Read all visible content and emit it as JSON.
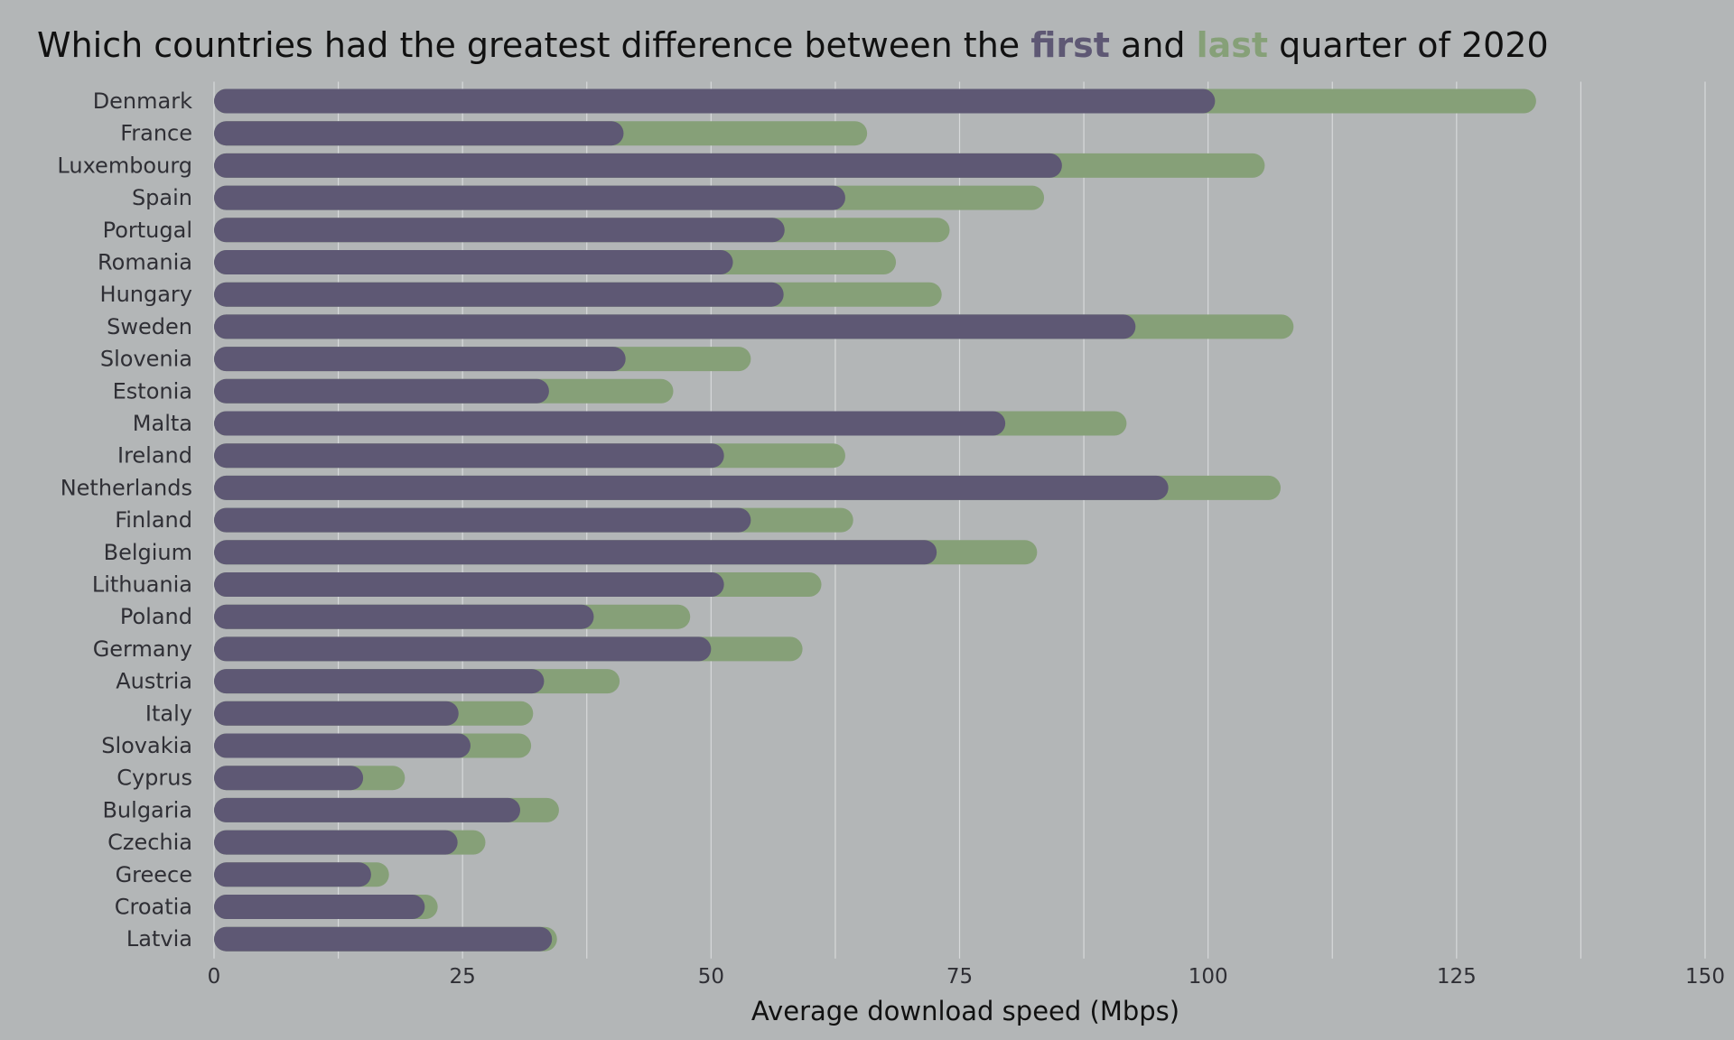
{
  "title": {
    "before": "Which countries had the greatest difference between the ",
    "first": "first",
    "middle": " and ",
    "last": "last",
    "after": " quarter of 2020"
  },
  "colors": {
    "background": "#b3b6b7",
    "first": "#5e5874",
    "last": "#86a078",
    "grid": "#d7d9da"
  },
  "chart_data": {
    "type": "bar",
    "orientation": "horizontal",
    "xlabel": "Average download speed (Mbps)",
    "xlim": [
      0,
      150
    ],
    "xticks": [
      0,
      25,
      50,
      75,
      100,
      125,
      150
    ],
    "grid": true,
    "categories": [
      "Denmark",
      "France",
      "Luxembourg",
      "Spain",
      "Portugal",
      "Romania",
      "Hungary",
      "Sweden",
      "Slovenia",
      "Estonia",
      "Malta",
      "Ireland",
      "Netherlands",
      "Finland",
      "Belgium",
      "Lithuania",
      "Poland",
      "Germany",
      "Austria",
      "Italy",
      "Slovakia",
      "Cyprus",
      "Bulgaria",
      "Czechia",
      "Greece",
      "Croatia",
      "Latvia"
    ],
    "series": [
      {
        "name": "first",
        "color": "#5e5874",
        "values": [
          100.7,
          41.2,
          85.3,
          63.5,
          57.4,
          52.2,
          57.3,
          92.7,
          41.4,
          33.7,
          79.6,
          51.3,
          96.0,
          54.0,
          72.7,
          51.3,
          38.2,
          50.0,
          33.2,
          24.6,
          25.8,
          15.0,
          30.8,
          24.5,
          15.8,
          21.2,
          34.0
        ]
      },
      {
        "name": "last",
        "color": "#86a078",
        "values": [
          133.0,
          65.7,
          105.7,
          83.5,
          74.0,
          68.6,
          73.2,
          108.6,
          54.0,
          46.2,
          91.8,
          63.5,
          107.3,
          64.3,
          82.8,
          61.1,
          47.9,
          59.2,
          40.8,
          32.1,
          31.9,
          19.2,
          34.7,
          27.3,
          17.6,
          22.5,
          34.5
        ]
      }
    ]
  }
}
